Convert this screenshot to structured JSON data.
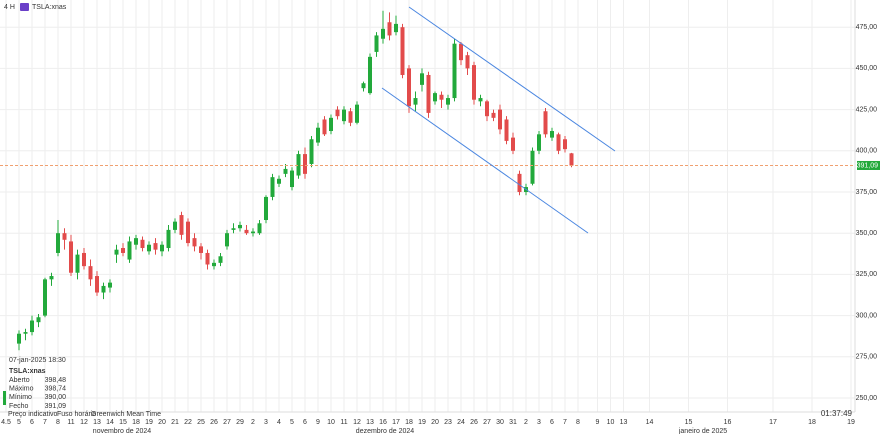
{
  "chart_data": {
    "type": "candlestick",
    "interval": "4 H",
    "symbol": "TSLA:xnas",
    "categories": [
      "4.5",
      null,
      "5",
      null,
      "6",
      null,
      "7",
      null,
      "8",
      null,
      "11",
      null,
      "12",
      null,
      "13",
      null,
      "14",
      null,
      "15",
      null,
      "18",
      null,
      "19",
      null,
      "20",
      null,
      "21",
      null,
      "22",
      null,
      "25",
      null,
      "26",
      null,
      "27",
      null,
      "29",
      null,
      "2",
      null,
      "3",
      null,
      "4",
      null,
      "5",
      null,
      "6",
      null,
      "9",
      null,
      "10",
      null,
      "11",
      null,
      "12",
      null,
      "13",
      null,
      "16",
      null,
      "17",
      null,
      "18",
      null,
      "19",
      null,
      "20",
      null,
      "23",
      null,
      "24",
      null,
      "26",
      null,
      "27",
      null,
      "30",
      null,
      "31",
      null,
      "2",
      null,
      "3",
      null,
      "6",
      null,
      "7",
      null,
      "8",
      null,
      null,
      "9",
      null,
      "10",
      null,
      "13",
      null,
      null,
      null,
      "14",
      null,
      null,
      null,
      null,
      null,
      "15",
      null,
      null,
      null,
      null,
      null,
      "16",
      null,
      null,
      null,
      null,
      null,
      null,
      "17",
      null,
      null,
      null,
      null,
      null,
      "18",
      null,
      null,
      null,
      null,
      null,
      "19"
    ],
    "months": [
      "novembro de 2024",
      "dezembro de 2024",
      "janeiro de 2025"
    ],
    "open": [
      null,
      null,
      283,
      289,
      290,
      296,
      300,
      322,
      338,
      350,
      345,
      326,
      338,
      330,
      324,
      314,
      317,
      337,
      341,
      334,
      343,
      346,
      339,
      344,
      339,
      341,
      352,
      361,
      357,
      347,
      342,
      338,
      330,
      332,
      342,
      352,
      353,
      352,
      350,
      350,
      358,
      372,
      380,
      386,
      378,
      385,
      398,
      392,
      405,
      419,
      412,
      425,
      418,
      424,
      417,
      438,
      435,
      460,
      468,
      478,
      472,
      475,
      450,
      428,
      440,
      446,
      430,
      434,
      428,
      432,
      465,
      458,
      452,
      430,
      430,
      423,
      425,
      419,
      408,
      386,
      375,
      380,
      400,
      424,
      408,
      410,
      407,
      398.48,
      null,
      null,
      null,
      null,
      null,
      null,
      null,
      null,
      null,
      null,
      null,
      null,
      null,
      null,
      null,
      null,
      null,
      null,
      null,
      null,
      null,
      null,
      null,
      null,
      null,
      null,
      null,
      null,
      null,
      null,
      null,
      null,
      null,
      null,
      null,
      null,
      null,
      null,
      null,
      null,
      null,
      null,
      null
    ],
    "high": [
      null,
      null,
      291,
      292,
      300,
      301,
      323,
      326,
      358,
      353,
      349,
      340,
      341,
      334,
      327,
      320,
      322,
      343,
      344,
      348,
      349,
      348,
      345,
      347,
      345,
      355,
      359,
      363,
      359,
      350,
      344,
      340,
      334,
      338,
      352,
      356,
      357,
      355,
      353,
      358,
      373,
      386,
      385,
      392,
      390,
      400,
      402,
      409,
      417,
      421,
      422,
      427,
      427,
      426,
      430,
      442,
      459,
      472,
      485,
      484,
      482,
      477,
      452,
      436,
      450,
      448,
      436,
      436,
      434,
      468,
      466,
      460,
      454,
      434,
      431,
      425,
      428,
      421,
      411,
      388,
      380,
      402,
      412,
      426,
      414,
      411,
      409,
      398.74,
      null,
      null,
      null,
      null,
      null,
      null,
      null,
      null,
      null,
      null,
      null,
      null,
      null,
      null,
      null,
      null,
      null,
      null,
      null,
      null,
      null,
      null,
      null,
      null,
      null,
      null,
      null,
      null,
      null,
      null,
      null,
      null,
      null,
      null,
      null,
      null,
      null,
      null,
      null,
      null,
      null,
      null,
      null
    ],
    "low": [
      null,
      null,
      279,
      285,
      288,
      293,
      299,
      318,
      336,
      340,
      324,
      322,
      328,
      318,
      312,
      310,
      314,
      332,
      336,
      332,
      340,
      339,
      337,
      337,
      336,
      339,
      350,
      346,
      342,
      339,
      334,
      328,
      328,
      330,
      340,
      350,
      351,
      349,
      348,
      349,
      356,
      370,
      378,
      384,
      376,
      383,
      383,
      390,
      403,
      409,
      410,
      419,
      416,
      415,
      416,
      436,
      434,
      457,
      465,
      467,
      470,
      444,
      423,
      424,
      436,
      420,
      428,
      426,
      425,
      430,
      452,
      446,
      428,
      427,
      418,
      418,
      410,
      404,
      398,
      373,
      373,
      379,
      398,
      408,
      406,
      398,
      399,
      390,
      null,
      null,
      null,
      null,
      null,
      null,
      null,
      null,
      null,
      null,
      null,
      null,
      null,
      null,
      null,
      null,
      null,
      null,
      null,
      null,
      null,
      null,
      null,
      null,
      null,
      null,
      null,
      null,
      null,
      null,
      null,
      null,
      null,
      null,
      null,
      null,
      null,
      null,
      null,
      null,
      null,
      null,
      null
    ],
    "close": [
      null,
      null,
      289,
      290,
      297,
      299,
      322,
      324,
      350,
      346,
      326,
      337,
      330,
      322,
      314,
      318,
      320,
      340,
      338,
      345,
      347,
      341,
      343,
      340,
      343,
      352,
      357,
      349,
      344,
      342,
      338,
      331,
      332,
      336,
      350,
      353,
      355,
      350,
      351,
      356,
      372,
      384,
      383,
      389,
      388,
      398,
      386,
      407,
      414,
      410,
      420,
      421,
      425,
      417,
      428,
      441,
      457,
      470,
      474,
      470,
      477,
      446,
      427,
      432,
      447,
      423,
      435,
      431,
      432,
      465,
      455,
      450,
      431,
      432,
      421,
      420,
      413,
      406,
      400,
      375,
      378,
      400,
      410,
      410,
      412,
      400,
      401,
      391.09,
      null,
      null,
      null,
      null,
      null,
      null,
      null,
      null,
      null,
      null,
      null,
      null,
      null,
      null,
      null,
      null,
      null,
      null,
      null,
      null,
      null,
      null,
      null,
      null,
      null,
      null,
      null,
      null,
      null,
      null,
      null,
      null,
      null,
      null,
      null,
      null,
      null,
      null,
      null,
      null,
      null,
      null,
      null
    ],
    "up_color": "#22a93b",
    "down_color": "#e24b4b",
    "ylim": [
      241.5,
      491.5
    ],
    "yticks": [
      {
        "value": 250,
        "label": "250,00"
      },
      {
        "value": 275,
        "label": "275,00"
      },
      {
        "value": 300,
        "label": "300,00"
      },
      {
        "value": 325,
        "label": "325,00"
      },
      {
        "value": 350,
        "label": "350,00"
      },
      {
        "value": 375,
        "label": "375,00"
      },
      {
        "value": 400,
        "label": "400,00"
      },
      {
        "value": 425,
        "label": "425,00"
      },
      {
        "value": 450,
        "label": "450,00"
      },
      {
        "value": 475,
        "label": "475,00"
      }
    ],
    "grid": true,
    "price_line": {
      "value": 391.09,
      "label": "391,09",
      "color": "#f0a070"
    }
  },
  "info": {
    "datetime": "07-jan-2025 18:30",
    "symbol": "TSLA:xnas",
    "rows": [
      {
        "name": "Aberto",
        "value": "398,48"
      },
      {
        "name": "Máximo",
        "value": "398,74"
      },
      {
        "name": "Mínimo",
        "value": "390,00"
      },
      {
        "name": "Fecho",
        "value": "391,09"
      }
    ]
  },
  "footer": {
    "items": [
      "Preço indicativo",
      "Fuso horário",
      "Greenwich Mean Time"
    ],
    "clock": "01:37:49"
  }
}
